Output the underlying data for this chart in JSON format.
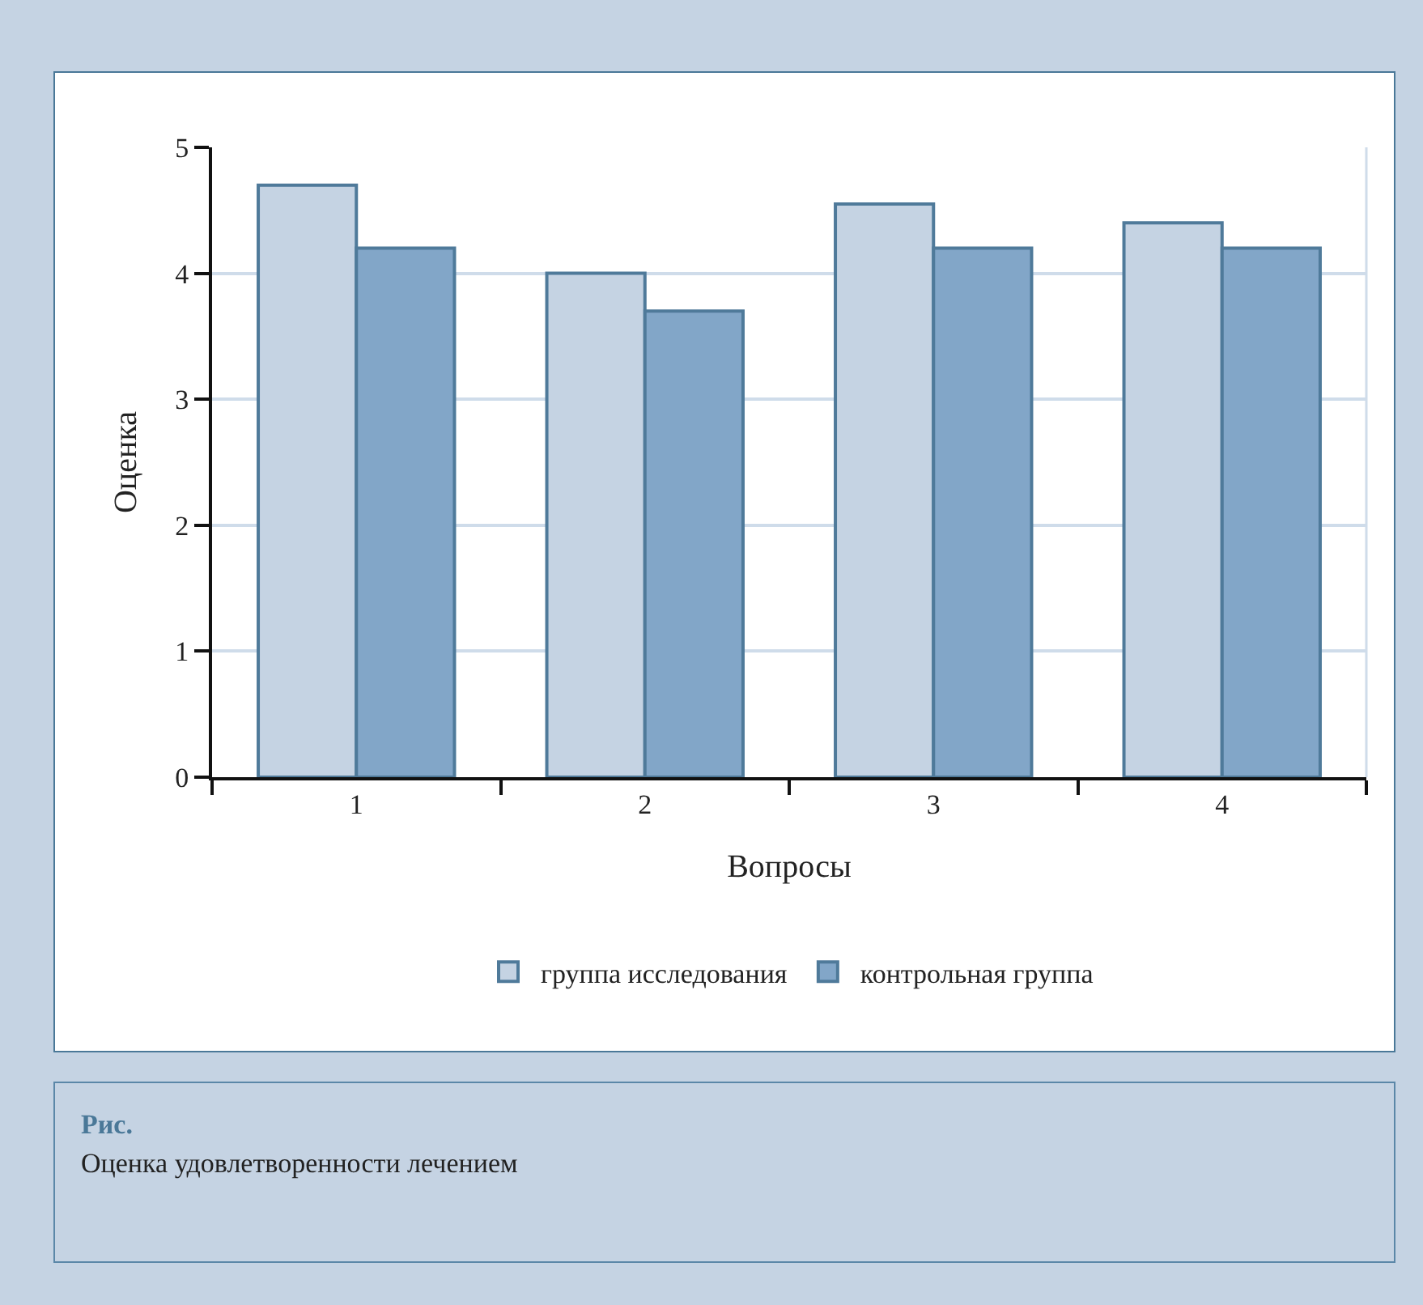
{
  "chart_data": {
    "type": "bar",
    "categories": [
      "1",
      "2",
      "3",
      "4"
    ],
    "series": [
      {
        "name": "группа исследования",
        "color": "#c5d3e3",
        "values": [
          4.7,
          4.0,
          4.55,
          4.4
        ]
      },
      {
        "name": "контрольная группа",
        "color": "#82a6c8",
        "values": [
          4.2,
          3.7,
          4.2,
          4.2
        ]
      }
    ],
    "xlabel": "Вопросы",
    "ylabel": "Оценка",
    "ylim": [
      0,
      5
    ],
    "yticks": [
      0,
      1,
      2,
      3,
      4,
      5
    ],
    "grid": "y",
    "legend": "bottom",
    "annotations": [
      "Рис.",
      "Оценка удовлетворенности лечением"
    ]
  }
}
